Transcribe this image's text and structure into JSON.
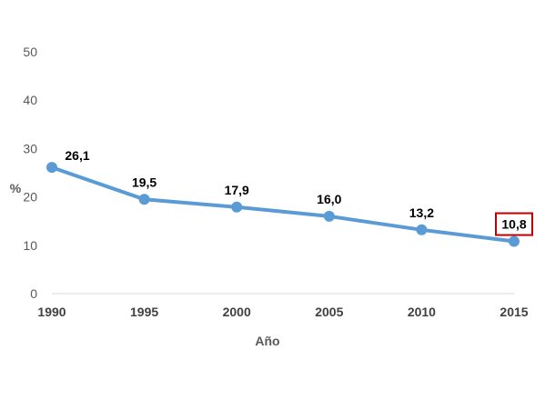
{
  "chart_data": {
    "type": "line",
    "x": [
      1990,
      1995,
      2000,
      2005,
      2010,
      2015
    ],
    "series": [
      {
        "values": [
          26.1,
          19.5,
          17.9,
          16.0,
          13.2,
          10.8
        ]
      }
    ],
    "data_labels": [
      "26,1",
      "19,5",
      "17,9",
      "16,0",
      "13,2",
      "10,8"
    ],
    "x_tick_labels": [
      "1990",
      "1995",
      "2000",
      "2005",
      "2010",
      "2015"
    ],
    "y_ticks": [
      0,
      10,
      20,
      30,
      40,
      50
    ],
    "y_tick_labels": [
      "0",
      "10",
      "20",
      "30",
      "40",
      "50"
    ],
    "xlabel": "Año",
    "ylabel": "%",
    "ylim": [
      0,
      50
    ],
    "grid": false,
    "highlighted_label_index": 5,
    "colors": {
      "line": "#5b9bd5",
      "highlight_box": "#c00000",
      "axis": "#d9d9d9"
    }
  }
}
